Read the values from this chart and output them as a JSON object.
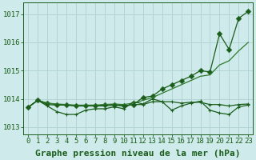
{
  "x": [
    0,
    1,
    2,
    3,
    4,
    5,
    6,
    7,
    8,
    9,
    10,
    11,
    12,
    13,
    14,
    15,
    16,
    17,
    18,
    19,
    20,
    21,
    22,
    23
  ],
  "line_sharp": [
    1013.7,
    1013.95,
    1013.85,
    1013.8,
    1013.8,
    1013.75,
    1013.75,
    1013.75,
    1013.8,
    1013.8,
    1013.75,
    1013.8,
    1014.05,
    1014.1,
    1014.35,
    1014.5,
    1014.65,
    1014.8,
    1015.0,
    1014.95,
    1016.3,
    1015.75,
    1016.85,
    1017.1
  ],
  "line_smooth": [
    1013.7,
    1013.95,
    1013.85,
    1013.82,
    1013.8,
    1013.78,
    1013.78,
    1013.78,
    1013.8,
    1013.82,
    1013.8,
    1013.85,
    1013.95,
    1014.05,
    1014.2,
    1014.35,
    1014.5,
    1014.65,
    1014.8,
    1014.85,
    1015.2,
    1015.35,
    1015.7,
    1016.0
  ],
  "line_flat": [
    1013.7,
    1013.95,
    1013.8,
    1013.78,
    1013.78,
    1013.75,
    1013.75,
    1013.75,
    1013.75,
    1013.78,
    1013.75,
    1013.8,
    1013.8,
    1013.9,
    1013.9,
    1013.9,
    1013.85,
    1013.88,
    1013.88,
    1013.8,
    1013.8,
    1013.75,
    1013.8,
    1013.82
  ],
  "line_jagged": [
    1013.7,
    1013.95,
    1013.75,
    1013.55,
    1013.45,
    1013.45,
    1013.6,
    1013.65,
    1013.65,
    1013.72,
    1013.65,
    1013.9,
    1013.82,
    1014.0,
    1013.9,
    1013.6,
    1013.75,
    1013.85,
    1013.92,
    1013.6,
    1013.5,
    1013.45,
    1013.72,
    1013.78
  ],
  "line_color_dark": "#1a5c1a",
  "line_color_mid": "#2d7a2d",
  "background_color": "#ceeaea",
  "grid_color": "#aed0d0",
  "ylabel_ticks": [
    1013,
    1014,
    1015,
    1016,
    1017
  ],
  "ylim": [
    1012.75,
    1017.4
  ],
  "xlim": [
    -0.5,
    23.5
  ],
  "xlabel": "Graphe pression niveau de la mer (hPa)",
  "tick_fontsize": 6.5,
  "xlabel_fontsize": 8,
  "marker_size_large": 3.5,
  "marker_size_small": 2.5,
  "line_width": 0.9
}
